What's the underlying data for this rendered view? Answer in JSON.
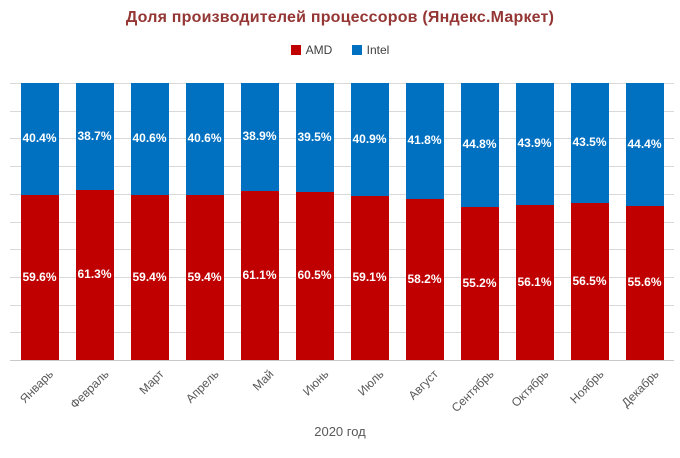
{
  "chart_data": {
    "type": "bar",
    "subtype": "stacked-100",
    "title": "Доля производителей процессоров (Яндекс.Маркет)",
    "xlabel": "2020 год",
    "categories": [
      "Январь",
      "Февраль",
      "Март",
      "Апрель",
      "Май",
      "Июнь",
      "Июль",
      "Август",
      "Сентябрь",
      "Октябрь",
      "Ноябрь",
      "Декабрь"
    ],
    "series": [
      {
        "name": "AMD",
        "values": [
          59.6,
          61.3,
          59.4,
          59.4,
          61.1,
          60.5,
          59.1,
          58.2,
          55.2,
          56.1,
          56.5,
          55.6
        ]
      },
      {
        "name": "Intel",
        "values": [
          40.4,
          38.7,
          40.6,
          40.6,
          38.9,
          39.5,
          40.9,
          41.8,
          44.8,
          43.9,
          43.5,
          44.4
        ]
      }
    ],
    "data_label_format": "0.0%",
    "ylim": [
      0,
      100
    ],
    "grid": "horizontal-10pct",
    "legend_position": "top",
    "colors": {
      "amd": "#c00000",
      "intel": "#0070c0",
      "title_text": "#943634",
      "gridline": "#d9d9d9",
      "axis_line": "#c9c9c9",
      "tick_text": "#595959",
      "data_label_text": "#ffffff"
    }
  }
}
